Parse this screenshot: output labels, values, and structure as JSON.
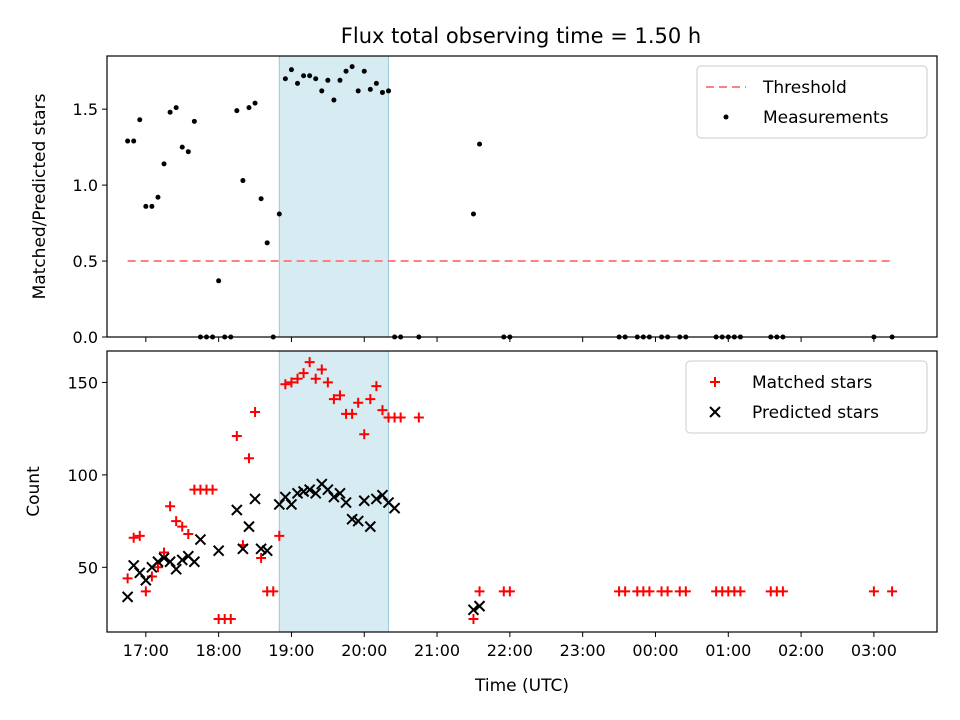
{
  "title": "Flux total observing time = 1.50 h",
  "chart_data": [
    {
      "type": "scatter",
      "panel": "top",
      "title": "Flux total observing time = 1.50 h",
      "xlabel": "",
      "ylabel": "Matched/Predicted stars",
      "xlim": [
        "16:28",
        "03:52"
      ],
      "ylim": [
        0,
        1.85
      ],
      "yticks": [
        0.0,
        0.5,
        1.0,
        1.5
      ],
      "ytick_labels": [
        "0.0",
        "0.5",
        "1.0",
        "1.5"
      ],
      "legend_position": "top-right",
      "observing_window": [
        "18:50",
        "20:20"
      ],
      "threshold": {
        "name": "Threshold",
        "value": 0.5,
        "x_range": [
          "16:45",
          "03:15"
        ],
        "color": "#ff8080"
      },
      "series": [
        {
          "name": "Measurements",
          "color": "#000000",
          "points": [
            [
              "16:45",
              1.29
            ],
            [
              "16:50",
              1.29
            ],
            [
              "16:55",
              1.43
            ],
            [
              "17:00",
              0.86
            ],
            [
              "17:05",
              0.86
            ],
            [
              "17:10",
              0.92
            ],
            [
              "17:15",
              1.14
            ],
            [
              "17:20",
              1.48
            ],
            [
              "17:25",
              1.51
            ],
            [
              "17:30",
              1.25
            ],
            [
              "17:35",
              1.22
            ],
            [
              "17:40",
              1.42
            ],
            [
              "17:45",
              0.0
            ],
            [
              "17:50",
              0.0
            ],
            [
              "17:55",
              0.0
            ],
            [
              "18:00",
              0.37
            ],
            [
              "18:05",
              0.0
            ],
            [
              "18:10",
              0.0
            ],
            [
              "18:15",
              1.49
            ],
            [
              "18:20",
              1.03
            ],
            [
              "18:25",
              1.51
            ],
            [
              "18:30",
              1.54
            ],
            [
              "18:35",
              0.91
            ],
            [
              "18:40",
              0.62
            ],
            [
              "18:45",
              0.0
            ],
            [
              "18:50",
              0.81
            ],
            [
              "18:55",
              1.7
            ],
            [
              "19:00",
              1.76
            ],
            [
              "19:05",
              1.67
            ],
            [
              "19:10",
              1.72
            ],
            [
              "19:15",
              1.72
            ],
            [
              "19:20",
              1.7
            ],
            [
              "19:25",
              1.62
            ],
            [
              "19:30",
              1.69
            ],
            [
              "19:35",
              1.56
            ],
            [
              "19:40",
              1.69
            ],
            [
              "19:45",
              1.75
            ],
            [
              "19:50",
              1.78
            ],
            [
              "19:55",
              1.62
            ],
            [
              "20:00",
              1.75
            ],
            [
              "20:05",
              1.63
            ],
            [
              "20:10",
              1.67
            ],
            [
              "20:15",
              1.61
            ],
            [
              "20:20",
              1.62
            ],
            [
              "20:25",
              0.0
            ],
            [
              "20:30",
              0.0
            ],
            [
              "20:45",
              0.0
            ],
            [
              "21:30",
              0.81
            ],
            [
              "21:35",
              1.27
            ],
            [
              "21:55",
              0.0
            ],
            [
              "22:00",
              0.0
            ],
            [
              "23:30",
              0.0
            ],
            [
              "23:35",
              0.0
            ],
            [
              "23:45",
              0.0
            ],
            [
              "23:50",
              0.0
            ],
            [
              "23:55",
              0.0
            ],
            [
              "00:05",
              0.0
            ],
            [
              "00:10",
              0.0
            ],
            [
              "00:20",
              0.0
            ],
            [
              "00:25",
              0.0
            ],
            [
              "00:50",
              0.0
            ],
            [
              "00:55",
              0.0
            ],
            [
              "01:00",
              0.0
            ],
            [
              "01:05",
              0.0
            ],
            [
              "01:10",
              0.0
            ],
            [
              "01:35",
              0.0
            ],
            [
              "01:40",
              0.0
            ],
            [
              "01:45",
              0.0
            ],
            [
              "03:00",
              0.0
            ],
            [
              "03:15",
              0.0
            ]
          ]
        }
      ]
    },
    {
      "type": "scatter",
      "panel": "bottom",
      "xlabel": "Time (UTC)",
      "ylabel": "Count",
      "xlim": [
        "16:28",
        "03:52"
      ],
      "ylim": [
        15,
        167
      ],
      "yticks": [
        50,
        100,
        150
      ],
      "ytick_labels": [
        "50",
        "100",
        "150"
      ],
      "xticks": [
        "17:00",
        "18:00",
        "19:00",
        "20:00",
        "21:00",
        "22:00",
        "23:00",
        "00:00",
        "01:00",
        "02:00",
        "03:00"
      ],
      "legend_position": "top-right",
      "observing_window": [
        "18:50",
        "20:20"
      ],
      "series": [
        {
          "name": "Matched stars",
          "color": "#ff0000",
          "marker": "+",
          "points": [
            [
              "16:45",
              44
            ],
            [
              "16:50",
              66
            ],
            [
              "16:55",
              67
            ],
            [
              "17:00",
              37
            ],
            [
              "17:05",
              45
            ],
            [
              "17:10",
              50
            ],
            [
              "17:15",
              58
            ],
            [
              "17:20",
              83
            ],
            [
              "17:25",
              75
            ],
            [
              "17:30",
              72
            ],
            [
              "17:35",
              68
            ],
            [
              "17:40",
              92
            ],
            [
              "17:45",
              92
            ],
            [
              "17:50",
              92
            ],
            [
              "17:55",
              92
            ],
            [
              "18:00",
              22
            ],
            [
              "18:05",
              22
            ],
            [
              "18:10",
              22
            ],
            [
              "18:15",
              121
            ],
            [
              "18:20",
              62
            ],
            [
              "18:25",
              109
            ],
            [
              "18:30",
              134
            ],
            [
              "18:35",
              55
            ],
            [
              "18:40",
              37
            ],
            [
              "18:45",
              37
            ],
            [
              "18:50",
              67
            ],
            [
              "18:55",
              149
            ],
            [
              "19:00",
              150
            ],
            [
              "19:05",
              152
            ],
            [
              "19:10",
              155
            ],
            [
              "19:15",
              161
            ],
            [
              "19:20",
              152
            ],
            [
              "19:25",
              157
            ],
            [
              "19:30",
              150
            ],
            [
              "19:35",
              141
            ],
            [
              "19:40",
              143
            ],
            [
              "19:45",
              133
            ],
            [
              "19:50",
              133
            ],
            [
              "19:55",
              139
            ],
            [
              "20:00",
              122
            ],
            [
              "20:05",
              141
            ],
            [
              "20:10",
              148
            ],
            [
              "20:15",
              135
            ],
            [
              "20:20",
              131
            ],
            [
              "20:25",
              131
            ],
            [
              "20:30",
              131
            ],
            [
              "20:45",
              131
            ],
            [
              "21:30",
              22
            ],
            [
              "21:35",
              37
            ],
            [
              "21:55",
              37
            ],
            [
              "22:00",
              37
            ],
            [
              "23:30",
              37
            ],
            [
              "23:35",
              37
            ],
            [
              "23:45",
              37
            ],
            [
              "23:50",
              37
            ],
            [
              "23:55",
              37
            ],
            [
              "00:05",
              37
            ],
            [
              "00:10",
              37
            ],
            [
              "00:20",
              37
            ],
            [
              "00:25",
              37
            ],
            [
              "00:50",
              37
            ],
            [
              "00:55",
              37
            ],
            [
              "01:00",
              37
            ],
            [
              "01:05",
              37
            ],
            [
              "01:10",
              37
            ],
            [
              "01:35",
              37
            ],
            [
              "01:40",
              37
            ],
            [
              "01:45",
              37
            ],
            [
              "03:00",
              37
            ],
            [
              "03:15",
              37
            ]
          ]
        },
        {
          "name": "Predicted stars",
          "color": "#000000",
          "marker": "x",
          "points": [
            [
              "16:45",
              34
            ],
            [
              "16:50",
              51
            ],
            [
              "16:55",
              47
            ],
            [
              "17:00",
              43
            ],
            [
              "17:05",
              50
            ],
            [
              "17:10",
              53
            ],
            [
              "17:15",
              55
            ],
            [
              "17:20",
              53
            ],
            [
              "17:25",
              49
            ],
            [
              "17:30",
              54
            ],
            [
              "17:35",
              56
            ],
            [
              "17:40",
              53
            ],
            [
              "17:45",
              65
            ],
            [
              "18:00",
              59
            ],
            [
              "18:15",
              81
            ],
            [
              "18:20",
              60
            ],
            [
              "18:25",
              72
            ],
            [
              "18:30",
              87
            ],
            [
              "18:35",
              60
            ],
            [
              "18:40",
              59
            ],
            [
              "18:50",
              84
            ],
            [
              "18:55",
              88
            ],
            [
              "19:00",
              84
            ],
            [
              "19:05",
              90
            ],
            [
              "19:10",
              91
            ],
            [
              "19:15",
              92
            ],
            [
              "19:20",
              90
            ],
            [
              "19:25",
              95
            ],
            [
              "19:30",
              92
            ],
            [
              "19:35",
              88
            ],
            [
              "19:40",
              90
            ],
            [
              "19:45",
              85
            ],
            [
              "19:50",
              76
            ],
            [
              "19:55",
              75
            ],
            [
              "20:00",
              86
            ],
            [
              "20:05",
              72
            ],
            [
              "20:10",
              87
            ],
            [
              "20:15",
              89
            ],
            [
              "20:20",
              85
            ],
            [
              "20:25",
              82
            ],
            [
              "21:30",
              27
            ],
            [
              "21:35",
              29
            ]
          ]
        }
      ]
    }
  ]
}
